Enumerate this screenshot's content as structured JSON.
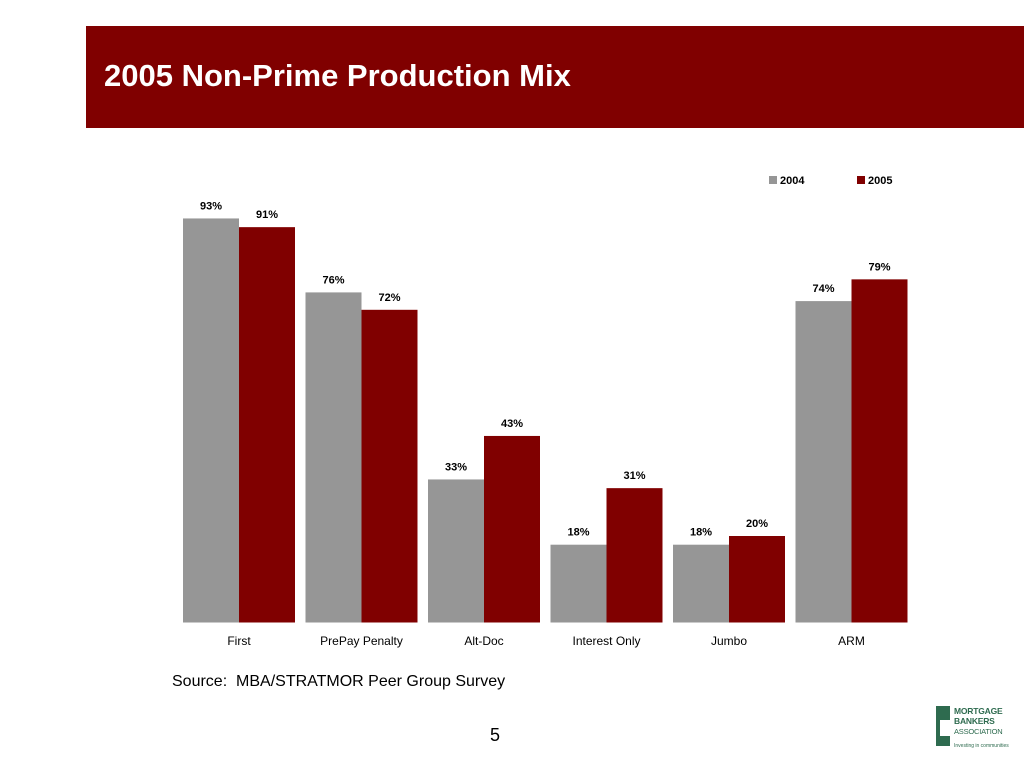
{
  "title": "2005 Non-Prime Production Mix",
  "source": "Source:  MBA/STRATMOR Peer Group Survey",
  "page_number": "5",
  "logo": {
    "line1": "MORTGAGE",
    "line2": "BANKERS",
    "line3": "ASSOCIATION",
    "tagline": "Investing in communities"
  },
  "colors": {
    "title_bar": "#800000",
    "series_2004": "#969696",
    "series_2005": "#800000",
    "logo_green": "#2e6b4f"
  },
  "chart_data": {
    "type": "bar",
    "title": "",
    "xlabel": "",
    "ylabel": "",
    "categories": [
      "First",
      "PrePay Penalty",
      "Alt-Doc",
      "Interest Only",
      "Jumbo",
      "ARM"
    ],
    "series": [
      {
        "name": "2004",
        "values": [
          93,
          76,
          33,
          18,
          18,
          74
        ],
        "labels": [
          "93%",
          "76%",
          "33%",
          "18%",
          "18%",
          "74%"
        ],
        "color": "#969696"
      },
      {
        "name": "2005",
        "values": [
          91,
          72,
          43,
          31,
          20,
          79
        ],
        "labels": [
          "91%",
          "72%",
          "43%",
          "31%",
          "20%",
          "79%"
        ],
        "color": "#800000"
      }
    ],
    "ylim": [
      0,
      100
    ],
    "y_axis_visible": false,
    "grid": false,
    "legend_position": "top-right"
  }
}
